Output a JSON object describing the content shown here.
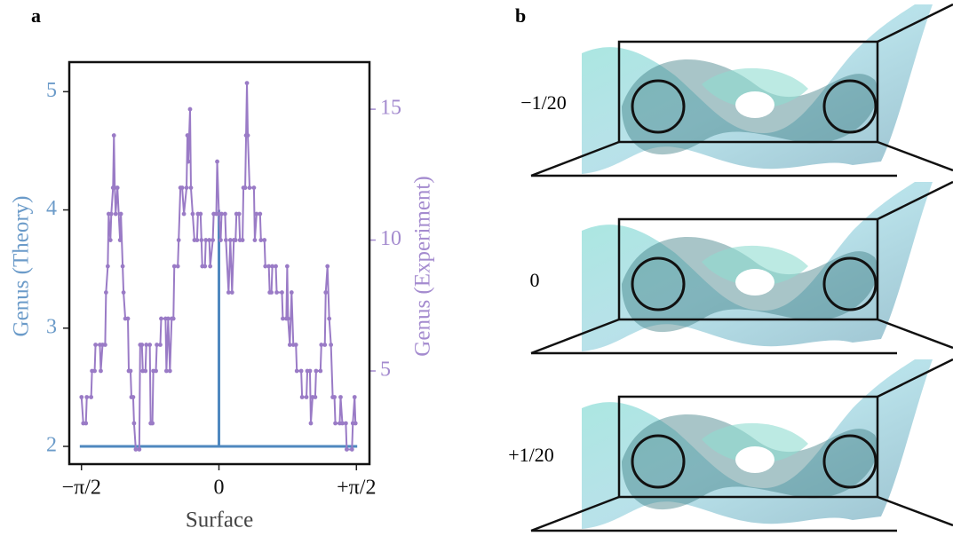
{
  "panels": [
    "a",
    "b"
  ],
  "surface_labels": [
    "−1/20",
    "0",
    "+1/20"
  ],
  "chart_data": {
    "type": "line",
    "x_label": "Surface",
    "y_label": "Genus (Theory)",
    "y2_label": "Genus (Experiment)",
    "xlim": [
      -1.71,
      1.72
    ],
    "xticks": [
      {
        "value": -1.5708,
        "label": "−π/2"
      },
      0,
      {
        "value": 1.5708,
        "label": "+π/2"
      }
    ],
    "ylim": [
      1.85,
      5.25
    ],
    "yticks": [
      2,
      3,
      4,
      5
    ],
    "y_color": "#6b9bc9",
    "y2lim": [
      1.44,
      16.8
    ],
    "y2ticks": [
      5,
      10,
      15
    ],
    "y2_color": "#a48bcf",
    "series": [
      {
        "color": "#4f88bf",
        "markers": false,
        "x": [
          -1.59,
          0,
          0,
          0,
          1.58
        ],
        "values": [
          2,
          2,
          4,
          2,
          2
        ]
      },
      {
        "color": "#9a7bc6",
        "markers": true,
        "axis": "y2",
        "x": [
          -1.57,
          -1.55,
          -1.52,
          -1.51,
          -1.46,
          -1.45,
          -1.42,
          -1.41,
          -1.36,
          -1.35,
          -1.33,
          -1.3,
          -1.29,
          -1.27,
          -1.26,
          -1.24,
          -1.23,
          -1.21,
          -1.2,
          -1.19,
          -1.18,
          -1.16,
          -1.13,
          -1.12,
          -1.1,
          -1.09,
          -1.07,
          -1.04,
          -1.03,
          -1.01,
          -1.0,
          -0.98,
          -0.97,
          -0.95,
          -0.91,
          -0.9,
          -0.88,
          -0.87,
          -0.84,
          -0.83,
          -0.79,
          -0.78,
          -0.76,
          -0.75,
          -0.72,
          -0.71,
          -0.67,
          -0.66,
          -0.61,
          -0.6,
          -0.58,
          -0.56,
          -0.54,
          -0.52,
          -0.51,
          -0.47,
          -0.46,
          -0.44,
          -0.42,
          -0.4,
          -0.37,
          -0.36,
          -0.35,
          -0.33,
          -0.32,
          -0.3,
          -0.28,
          -0.25,
          -0.24,
          -0.21,
          -0.2,
          -0.19,
          -0.16,
          -0.15,
          -0.11,
          -0.1,
          -0.07,
          -0.06,
          -0.03,
          -0.02,
          0.0,
          0.02,
          0.03,
          0.07,
          0.08,
          0.11,
          0.13,
          0.15,
          0.17,
          0.19,
          0.2,
          0.23,
          0.24,
          0.27,
          0.28,
          0.3,
          0.31,
          0.32,
          0.33,
          0.35,
          0.4,
          0.41,
          0.43,
          0.47,
          0.48,
          0.52,
          0.53,
          0.57,
          0.58,
          0.6,
          0.61,
          0.65,
          0.66,
          0.72,
          0.73,
          0.77,
          0.78,
          0.79,
          0.81,
          0.83,
          0.85,
          0.88,
          0.89,
          0.94,
          0.95,
          1.0,
          1.01,
          1.04,
          1.05,
          1.07,
          1.1,
          1.11,
          1.16,
          1.17,
          1.21,
          1.22,
          1.24,
          1.26,
          1.28,
          1.3,
          1.32,
          1.33,
          1.38,
          1.39,
          1.41,
          1.45,
          1.46,
          1.52,
          1.53,
          1.55,
          1.56
        ],
        "values": [
          4,
          3,
          3,
          4,
          4,
          5,
          5,
          6,
          6,
          5,
          6,
          6,
          8,
          9,
          11,
          10,
          11,
          12,
          14,
          12,
          11,
          12,
          10,
          11,
          9,
          8,
          7,
          7,
          5,
          5,
          4,
          4,
          3,
          2,
          2,
          6,
          6,
          5,
          5,
          6,
          6,
          3,
          3,
          5,
          5,
          6,
          6,
          7,
          7,
          5,
          7,
          5,
          7,
          7,
          9,
          9,
          10,
          12,
          12,
          11,
          12,
          14,
          13,
          15,
          12,
          11,
          10,
          10,
          11,
          11,
          10,
          9,
          9,
          10,
          10,
          9,
          10,
          11,
          11,
          13,
          11,
          10,
          11,
          11,
          10,
          8,
          10,
          8,
          10,
          10,
          11,
          11,
          10,
          10,
          12,
          12,
          14,
          16,
          14,
          12,
          12,
          10,
          11,
          11,
          10,
          10,
          9,
          9,
          8,
          8,
          9,
          9,
          8,
          8,
          7,
          7,
          9,
          7,
          6,
          8,
          6,
          6,
          5,
          5,
          4,
          4,
          5,
          5,
          3,
          4,
          4,
          5,
          5,
          6,
          6,
          8,
          9,
          7,
          6,
          4,
          4,
          3,
          3,
          4,
          3,
          3,
          2,
          2,
          3,
          4,
          3
        ]
      }
    ]
  }
}
